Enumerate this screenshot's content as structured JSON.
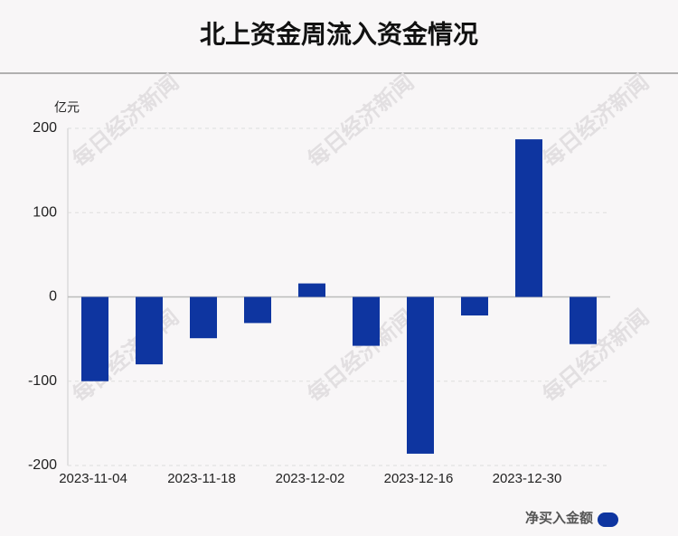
{
  "chart_data": {
    "type": "bar",
    "title": "北上资金周流入资金情况",
    "y_unit": "亿元",
    "watermark": "每日经济新闻",
    "categories": [
      "2023-11-04",
      null,
      "2023-11-18",
      null,
      "2023-12-02",
      null,
      "2023-12-16",
      null,
      "2023-12-30",
      null
    ],
    "series": [
      {
        "name": "净买入金额",
        "color": "#0e35a0",
        "values": [
          -100,
          -80,
          -49,
          -31,
          16,
          -58,
          -186,
          -22,
          187,
          -56
        ]
      }
    ],
    "ylim": [
      -200,
      200
    ],
    "yticks": [
      -200,
      -100,
      0,
      100,
      200
    ],
    "grid": true
  }
}
